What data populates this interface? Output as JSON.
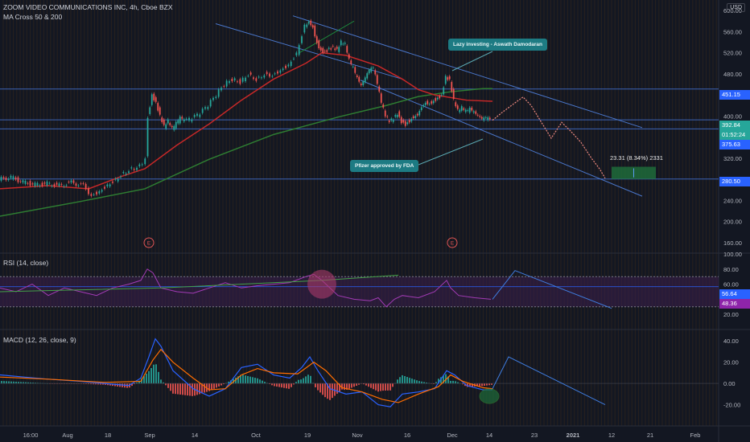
{
  "header": {
    "title": "ZOOM VIDEO COMMUNICATIONS INC, 4h, Cboe BZX",
    "indicator": "MA Cross 50 & 200",
    "currency": "USD"
  },
  "panes": {
    "rsi_label": "RSI (14, close)",
    "macd_label": "MACD (12, 26, close, 9)"
  },
  "annotations": {
    "lazy_investing": "Lazy investing - Aswath Damodaran",
    "pfizer": "Pfizer approved by FDA",
    "measure": "23.31 (8.34%) 2331",
    "earnings_marker": "E"
  },
  "price_tags": {
    "level_451": "451.15",
    "level_392": "392.84",
    "countdown": "01:52:24",
    "level_375": "375.63",
    "level_280": "280.50",
    "rsi_56": "56.64",
    "rsi_48": "48.36"
  },
  "colors": {
    "background": "#131722",
    "up_candle": "#26a69a",
    "down_candle": "#ef5350",
    "ma50": "#c2185b",
    "ma200": "#1b5e20",
    "trend_line": "#4a76c9",
    "rsi_line": "#8e24aa",
    "macd_line": "#2962ff",
    "signal_line": "#ff6d00"
  },
  "chart_data": [
    {
      "type": "candlestick",
      "title": "ZOOM VIDEO COMMUNICATIONS INC, 4h, Cboe BZX",
      "y_ticks": [
        "600.00",
        "560.00",
        "520.00",
        "480.00",
        "440.00",
        "400.00",
        "360.00",
        "320.00",
        "280.00",
        "240.00",
        "200.00",
        "160.00"
      ],
      "x_ticks": [
        "16:00",
        "Aug",
        "18",
        "Sep",
        "14",
        "Oct",
        "19",
        "Nov",
        "16",
        "Dec",
        "14",
        "23",
        "2021",
        "12",
        "21",
        "Feb"
      ],
      "ylim": [
        140,
        620
      ],
      "close_path": [
        [
          0,
          280
        ],
        [
          15,
          284
        ],
        [
          30,
          275
        ],
        [
          45,
          270
        ],
        [
          60,
          272
        ],
        [
          75,
          268
        ],
        [
          90,
          274
        ],
        [
          105,
          268
        ],
        [
          115,
          250
        ],
        [
          125,
          258
        ],
        [
          135,
          270
        ],
        [
          145,
          280
        ],
        [
          155,
          292
        ],
        [
          165,
          300
        ],
        [
          175,
          305
        ],
        [
          182,
          320
        ],
        [
          185,
          400
        ],
        [
          190,
          440
        ],
        [
          195,
          425
        ],
        [
          200,
          400
        ],
        [
          205,
          380
        ],
        [
          210,
          390
        ],
        [
          215,
          375
        ],
        [
          220,
          385
        ],
        [
          225,
          395
        ],
        [
          230,
          390
        ],
        [
          240,
          395
        ],
        [
          250,
          405
        ],
        [
          260,
          420
        ],
        [
          270,
          440
        ],
        [
          280,
          460
        ],
        [
          290,
          470
        ],
        [
          300,
          465
        ],
        [
          310,
          480
        ],
        [
          320,
          470
        ],
        [
          330,
          480
        ],
        [
          340,
          478
        ],
        [
          350,
          488
        ],
        [
          360,
          498
        ],
        [
          370,
          520
        ],
        [
          380,
          572
        ],
        [
          385,
          582
        ],
        [
          390,
          570
        ],
        [
          395,
          540
        ],
        [
          400,
          525
        ],
        [
          405,
          522
        ],
        [
          410,
          528
        ],
        [
          415,
          530
        ],
        [
          420,
          525
        ],
        [
          425,
          540
        ],
        [
          430,
          535
        ],
        [
          435,
          505
        ],
        [
          440,
          490
        ],
        [
          445,
          470
        ],
        [
          450,
          455
        ],
        [
          455,
          470
        ],
        [
          460,
          485
        ],
        [
          465,
          490
        ],
        [
          470,
          460
        ],
        [
          475,
          425
        ],
        [
          480,
          400
        ],
        [
          485,
          390
        ],
        [
          490,
          395
        ],
        [
          495,
          405
        ],
        [
          500,
          390
        ],
        [
          505,
          385
        ],
        [
          510,
          392
        ],
        [
          515,
          400
        ],
        [
          520,
          405
        ],
        [
          525,
          420
        ],
        [
          530,
          428
        ],
        [
          535,
          425
        ],
        [
          540,
          430
        ],
        [
          545,
          435
        ],
        [
          550,
          440
        ],
        [
          555,
          475
        ],
        [
          560,
          468
        ],
        [
          565,
          430
        ],
        [
          570,
          410
        ],
        [
          575,
          415
        ],
        [
          580,
          408
        ],
        [
          585,
          412
        ],
        [
          590,
          405
        ],
        [
          595,
          398
        ],
        [
          600,
          392
        ],
        [
          605,
          395
        ],
        [
          610,
          392
        ]
      ],
      "ma50": [
        [
          0,
          262
        ],
        [
          60,
          268
        ],
        [
          110,
          262
        ],
        [
          150,
          285
        ],
        [
          180,
          300
        ],
        [
          220,
          345
        ],
        [
          260,
          385
        ],
        [
          300,
          430
        ],
        [
          340,
          470
        ],
        [
          380,
          500
        ],
        [
          400,
          520
        ],
        [
          430,
          515
        ],
        [
          470,
          495
        ],
        [
          500,
          470
        ],
        [
          520,
          450
        ],
        [
          540,
          440
        ],
        [
          560,
          435
        ],
        [
          580,
          430
        ],
        [
          612,
          428
        ]
      ],
      "ma200": [
        [
          0,
          210
        ],
        [
          100,
          238
        ],
        [
          180,
          262
        ],
        [
          260,
          318
        ],
        [
          340,
          365
        ],
        [
          420,
          398
        ],
        [
          480,
          420
        ],
        [
          520,
          437
        ],
        [
          560,
          446
        ],
        [
          600,
          452
        ],
        [
          612,
          452
        ]
      ],
      "projection": [
        [
          612,
          392
        ],
        [
          625,
          408
        ],
        [
          640,
          425
        ],
        [
          650,
          436
        ],
        [
          660,
          420
        ],
        [
          672,
          390
        ],
        [
          685,
          358
        ],
        [
          698,
          388
        ],
        [
          710,
          370
        ],
        [
          722,
          350
        ],
        [
          735,
          320
        ],
        [
          745,
          300
        ],
        [
          752,
          282
        ]
      ],
      "horizontal_levels": [
        451.15,
        392.84,
        375.63,
        280.5
      ],
      "channel": {
        "upper": [
          [
            364,
            590
          ],
          [
            798,
            378
          ]
        ],
        "lower": [
          [
            448,
            468
          ],
          [
            798,
            248
          ]
        ]
      },
      "target_box": {
        "x0": 760,
        "x1": 815,
        "y0": 280.5,
        "y1": 303.8
      }
    },
    {
      "type": "line",
      "title": "RSI (14, close)",
      "y_ticks": [
        "100.00",
        "80.00",
        "60.00",
        "40.00",
        "20.00"
      ],
      "ylim": [
        0,
        100
      ],
      "bands": [
        70,
        30
      ],
      "rsi": [
        [
          0,
          55
        ],
        [
          20,
          50
        ],
        [
          40,
          60
        ],
        [
          60,
          45
        ],
        [
          80,
          55
        ],
        [
          100,
          50
        ],
        [
          120,
          45
        ],
        [
          140,
          55
        ],
        [
          160,
          60
        ],
        [
          175,
          65
        ],
        [
          183,
          80
        ],
        [
          190,
          75
        ],
        [
          200,
          55
        ],
        [
          220,
          50
        ],
        [
          240,
          48
        ],
        [
          260,
          55
        ],
        [
          280,
          62
        ],
        [
          300,
          55
        ],
        [
          320,
          58
        ],
        [
          340,
          60
        ],
        [
          360,
          62
        ],
        [
          380,
          70
        ],
        [
          390,
          73
        ],
        [
          400,
          65
        ],
        [
          410,
          55
        ],
        [
          420,
          45
        ],
        [
          440,
          40
        ],
        [
          460,
          38
        ],
        [
          470,
          42
        ],
        [
          480,
          30
        ],
        [
          490,
          40
        ],
        [
          500,
          45
        ],
        [
          520,
          42
        ],
        [
          540,
          50
        ],
        [
          555,
          65
        ],
        [
          560,
          55
        ],
        [
          570,
          45
        ],
        [
          590,
          42
        ],
        [
          610,
          40
        ]
      ],
      "rsi_ma": [
        [
          0,
          50
        ],
        [
          200,
          55
        ],
        [
          400,
          65
        ],
        [
          495,
          72
        ]
      ],
      "projection": [
        [
          612,
          40
        ],
        [
          640,
          78
        ],
        [
          760,
          28
        ]
      ]
    },
    {
      "type": "bar",
      "title": "MACD (12, 26, close, 9)",
      "y_ticks": [
        "40.00",
        "20.00",
        "0.00",
        "-20.00"
      ],
      "ylim": [
        -40,
        50
      ],
      "macd": [
        [
          0,
          8
        ],
        [
          30,
          6
        ],
        [
          60,
          4
        ],
        [
          100,
          2
        ],
        [
          130,
          0
        ],
        [
          160,
          -2
        ],
        [
          175,
          5
        ],
        [
          185,
          25
        ],
        [
          193,
          42
        ],
        [
          200,
          35
        ],
        [
          215,
          12
        ],
        [
          240,
          -5
        ],
        [
          260,
          -12
        ],
        [
          280,
          -5
        ],
        [
          300,
          15
        ],
        [
          320,
          18
        ],
        [
          340,
          8
        ],
        [
          360,
          5
        ],
        [
          375,
          15
        ],
        [
          385,
          25
        ],
        [
          395,
          12
        ],
        [
          410,
          -5
        ],
        [
          430,
          -10
        ],
        [
          450,
          -8
        ],
        [
          470,
          -20
        ],
        [
          485,
          -22
        ],
        [
          500,
          -10
        ],
        [
          520,
          -8
        ],
        [
          540,
          -5
        ],
        [
          555,
          12
        ],
        [
          565,
          8
        ],
        [
          580,
          -2
        ],
        [
          600,
          -6
        ],
        [
          612,
          -6
        ]
      ],
      "signal": [
        [
          0,
          6
        ],
        [
          60,
          4
        ],
        [
          130,
          1
        ],
        [
          175,
          2
        ],
        [
          190,
          22
        ],
        [
          200,
          32
        ],
        [
          215,
          20
        ],
        [
          240,
          5
        ],
        [
          260,
          -6
        ],
        [
          280,
          -5
        ],
        [
          300,
          8
        ],
        [
          320,
          14
        ],
        [
          340,
          10
        ],
        [
          370,
          9
        ],
        [
          390,
          20
        ],
        [
          405,
          12
        ],
        [
          425,
          -4
        ],
        [
          450,
          -8
        ],
        [
          475,
          -15
        ],
        [
          495,
          -18
        ],
        [
          520,
          -10
        ],
        [
          545,
          -3
        ],
        [
          560,
          8
        ],
        [
          575,
          2
        ],
        [
          600,
          -4
        ],
        [
          612,
          -5
        ]
      ],
      "projection": [
        [
          612,
          -5
        ],
        [
          632,
          25
        ],
        [
          752,
          -20
        ]
      ]
    }
  ]
}
